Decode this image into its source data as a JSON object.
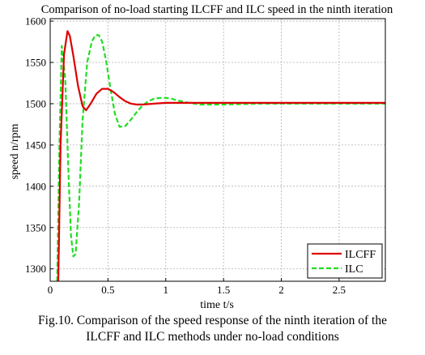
{
  "chart_data": {
    "type": "line",
    "title": "Comparison of no-load starting ILCFF and ILC speed in the ninth iteration",
    "xlabel": "time t/s",
    "ylabel": "speed n/rpm",
    "xlim": [
      0,
      2.9
    ],
    "ylim": [
      1285,
      1603
    ],
    "xticks": [
      "0",
      "0.5",
      "1",
      "1.5",
      "2",
      "2.5"
    ],
    "xtick_values": [
      0,
      0.5,
      1,
      1.5,
      2,
      2.5
    ],
    "yticks": [
      "1300",
      "1350",
      "1400",
      "1450",
      "1500",
      "1550",
      "1600"
    ],
    "ytick_values": [
      1300,
      1350,
      1400,
      1450,
      1500,
      1550,
      1600
    ],
    "grid": true,
    "legend_position": "bottom-right",
    "series": [
      {
        "name": "ILCFF",
        "color": "#dd0000",
        "style": "solid",
        "x": [
          0.07,
          0.09,
          0.12,
          0.15,
          0.17,
          0.2,
          0.24,
          0.28,
          0.31,
          0.35,
          0.4,
          0.45,
          0.5,
          0.55,
          0.6,
          0.65,
          0.7,
          0.75,
          0.8,
          0.9,
          1.0,
          1.2,
          1.5,
          2.0,
          2.5,
          2.9
        ],
        "values": [
          1285,
          1450,
          1560,
          1588,
          1582,
          1558,
          1522,
          1497,
          1492,
          1500,
          1512,
          1518,
          1518,
          1514,
          1508,
          1503,
          1500,
          1499,
          1499,
          1500,
          1501,
          1501,
          1501,
          1501,
          1501,
          1501
        ]
      },
      {
        "name": "ILC",
        "color": "#22dd22",
        "style": "dashed",
        "x": [
          0.06,
          0.08,
          0.1,
          0.13,
          0.16,
          0.18,
          0.2,
          0.22,
          0.25,
          0.28,
          0.32,
          0.36,
          0.39,
          0.42,
          0.45,
          0.48,
          0.52,
          0.56,
          0.6,
          0.65,
          0.7,
          0.75,
          0.8,
          0.85,
          0.9,
          0.95,
          1.0,
          1.05,
          1.1,
          1.2,
          1.3,
          1.5,
          1.8,
          2.0,
          2.5,
          2.9
        ],
        "values": [
          1285,
          1450,
          1570,
          1530,
          1410,
          1340,
          1315,
          1318,
          1380,
          1480,
          1550,
          1575,
          1583,
          1583,
          1575,
          1555,
          1520,
          1488,
          1472,
          1473,
          1481,
          1490,
          1498,
          1503,
          1506,
          1507,
          1507,
          1506,
          1504,
          1501,
          1499,
          1499,
          1500,
          1500,
          1500,
          1500
        ]
      }
    ]
  },
  "caption": {
    "line1": "Fig.10. Comparison of the speed response of the ninth iteration of the",
    "line2": "ILCFF and ILC methods under no-load conditions"
  }
}
